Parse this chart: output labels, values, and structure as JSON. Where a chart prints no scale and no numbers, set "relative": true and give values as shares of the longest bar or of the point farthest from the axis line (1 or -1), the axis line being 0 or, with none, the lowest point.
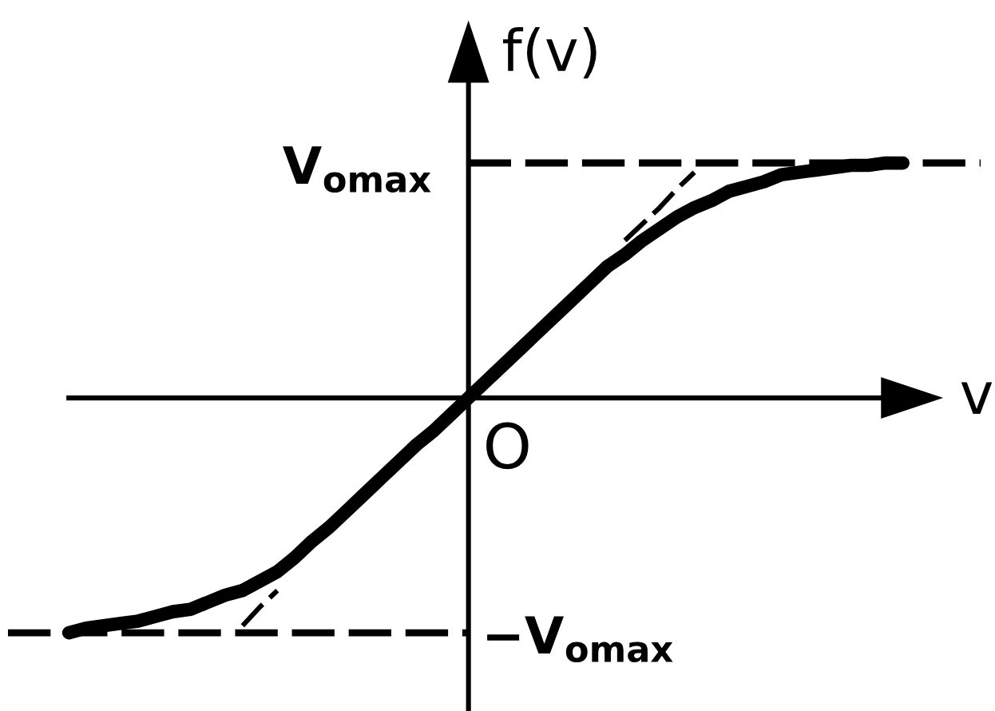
{
  "chart_data": {
    "type": "line",
    "relative": true,
    "xlabel": "v",
    "ylabel": "f(v)",
    "categories": [
      null,
      null,
      null,
      null,
      null,
      null,
      null,
      null,
      null,
      null,
      null,
      null,
      null,
      null,
      null,
      null,
      null,
      null,
      null,
      null,
      null,
      null,
      null,
      null,
      null,
      null,
      null,
      null,
      null,
      null,
      null,
      null,
      null,
      null,
      null,
      null,
      null,
      null,
      null,
      null,
      null,
      null,
      null,
      null,
      null,
      null,
      null,
      null,
      null
    ],
    "series": [
      {
        "color": "#000000",
        "line_style": "solid",
        "values": [
          -1,
          -0.98,
          -0.97,
          -0.96,
          -0.95,
          -0.93,
          -0.91,
          -0.9,
          -0.87,
          -0.84,
          -0.82,
          -0.78,
          -0.74,
          -0.68,
          -0.61,
          -0.55,
          -0.48,
          -0.41,
          -0.34,
          -0.27,
          -0.2,
          -0.14,
          -0.07,
          0,
          0.07,
          0.14,
          0.21,
          0.28,
          0.35,
          0.42,
          0.49,
          0.56,
          0.61,
          0.67,
          0.72,
          0.77,
          0.81,
          0.84,
          0.88,
          0.9,
          0.92,
          0.95,
          0.96,
          0.97,
          0.98,
          0.99,
          0.99,
          1,
          1
        ]
      },
      {
        "color": "#000000",
        "line_style": "dashed",
        "values": [
          null,
          null,
          null,
          null,
          null,
          null,
          null,
          null,
          null,
          null,
          -0.97,
          -0.89,
          -0.82,
          null,
          null,
          null,
          null,
          null,
          null,
          null,
          null,
          null,
          null,
          null,
          null,
          null,
          null,
          null,
          null,
          null,
          null,
          null,
          0.67,
          0.74,
          0.81,
          0.89,
          0.96,
          null,
          null,
          null,
          null,
          null,
          null,
          null,
          null,
          null,
          null,
          null,
          null
        ]
      }
    ],
    "ref_lines": [
      {
        "axis": "y",
        "value": 1,
        "label": "V$_{omax}$",
        "line_style": "dashed",
        "color": "#000000"
      },
      {
        "axis": "y",
        "value": -1,
        "label": "−V$_{omax}$",
        "line_style": "dashed",
        "color": "#000000"
      }
    ],
    "annotations": [
      "O"
    ]
  }
}
